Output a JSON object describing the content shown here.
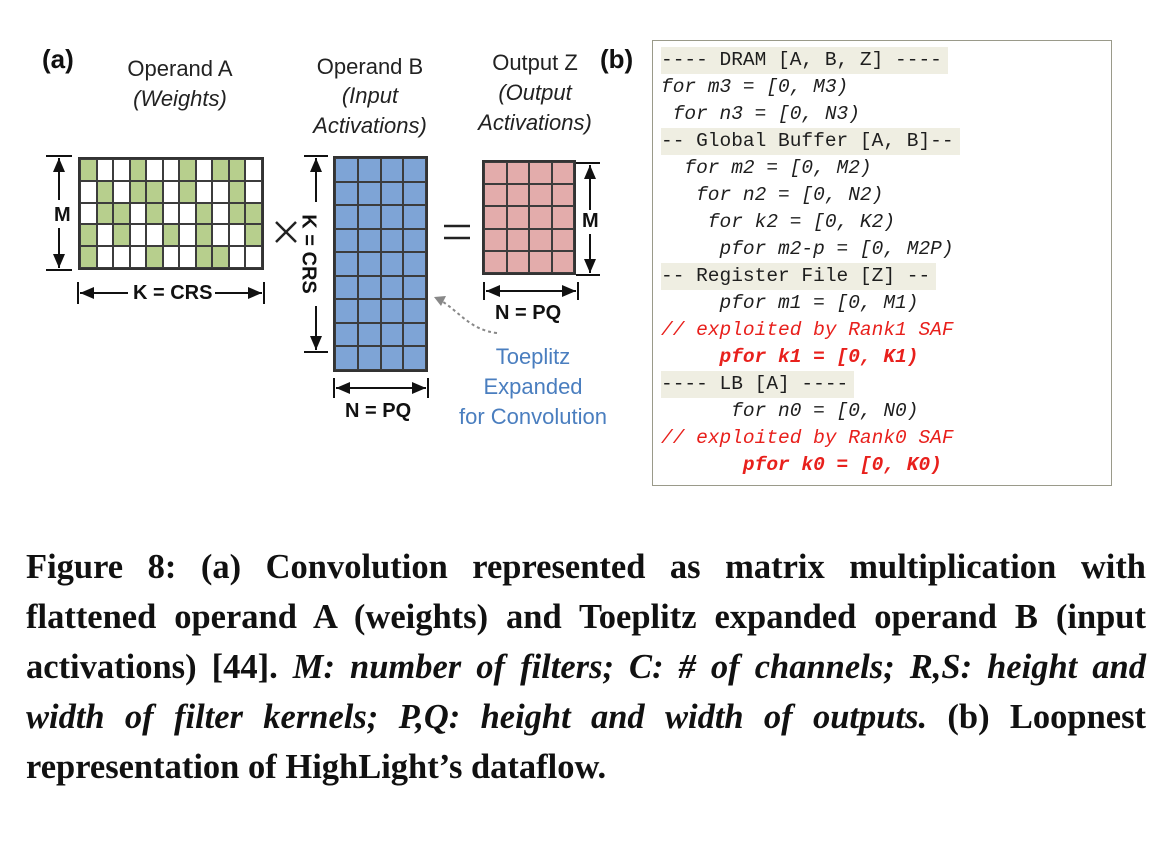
{
  "panel_a": {
    "tag": "(a)",
    "operand_a": {
      "title": "Operand A",
      "subtitle": "(Weights)",
      "rows": "M",
      "cols_label": "K = CRS"
    },
    "operand_b": {
      "title": "Operand B",
      "subtitle_1": "(Input",
      "subtitle_2": "Activations)",
      "rows_label": "K = CRS",
      "cols_label": "N = PQ"
    },
    "output_z": {
      "title": "Output Z",
      "subtitle_1": "(Output",
      "subtitle_2": "Activations)",
      "rows_label": "M",
      "cols_label": "N = PQ"
    },
    "times_symbol": "×",
    "equals_symbol": "=",
    "toeplitz_note": [
      "Toeplitz",
      "Expanded",
      "for Convolution"
    ],
    "weights_pattern": [
      [
        1,
        0,
        0,
        1,
        0,
        0,
        1,
        0,
        1,
        1,
        0
      ],
      [
        0,
        1,
        0,
        1,
        1,
        0,
        1,
        0,
        0,
        1,
        0
      ],
      [
        0,
        1,
        1,
        0,
        1,
        0,
        0,
        1,
        0,
        1,
        1
      ],
      [
        1,
        0,
        1,
        0,
        0,
        1,
        0,
        1,
        0,
        0,
        1
      ],
      [
        1,
        0,
        0,
        0,
        1,
        0,
        0,
        1,
        1,
        0,
        0
      ]
    ],
    "colors": {
      "weight_fill": "#b7cf8d",
      "input_fill": "#7ea4d6",
      "output_fill": "#e3acab"
    }
  },
  "panel_b": {
    "tag": "(b)",
    "lines": [
      {
        "text": "---- DRAM [A, B, Z] ----",
        "style": "band"
      },
      {
        "text": "for m3 = [0, M3)",
        "style": "italic"
      },
      {
        "text": " for n3 = [0, N3)",
        "style": "italic"
      },
      {
        "text": "-- Global Buffer [A, B]--",
        "style": "band"
      },
      {
        "text": "  for m2 = [0, M2)",
        "style": "italic"
      },
      {
        "text": "   for n2 = [0, N2)",
        "style": "italic"
      },
      {
        "text": "    for k2 = [0, K2)",
        "style": "italic"
      },
      {
        "text": "     pfor m2-p = [0, M2P)",
        "style": "italic"
      },
      {
        "text": "-- Register File [Z] --",
        "style": "band"
      },
      {
        "text": "     pfor m1 = [0, M1)",
        "style": "italic"
      },
      {
        "text": "// exploited by Rank1 SAF",
        "style": "red-italic"
      },
      {
        "text": "     pfor k1 = [0, K1)",
        "style": "red-bold"
      },
      {
        "text": "---- LB [A] ----",
        "style": "band"
      },
      {
        "text": "      for n0 = [0, N0)",
        "style": "italic"
      },
      {
        "text": "// exploited by Rank0 SAF",
        "style": "red-italic"
      },
      {
        "text": "       pfor k0 = [0, K0)",
        "style": "red-bold"
      }
    ]
  },
  "caption": {
    "part1": "Figure 8: (a) Convolution represented as matrix multiplication with flattened operand A (weights) and Toeplitz expanded operand B (input activations) [44]. ",
    "part2": "M: number of filters; C: # of channels; R,S: height and width of filter kernels; P,Q: height and width of outputs.",
    "part3": " (b) Loopnest representation of HighLight’s dataflow."
  }
}
